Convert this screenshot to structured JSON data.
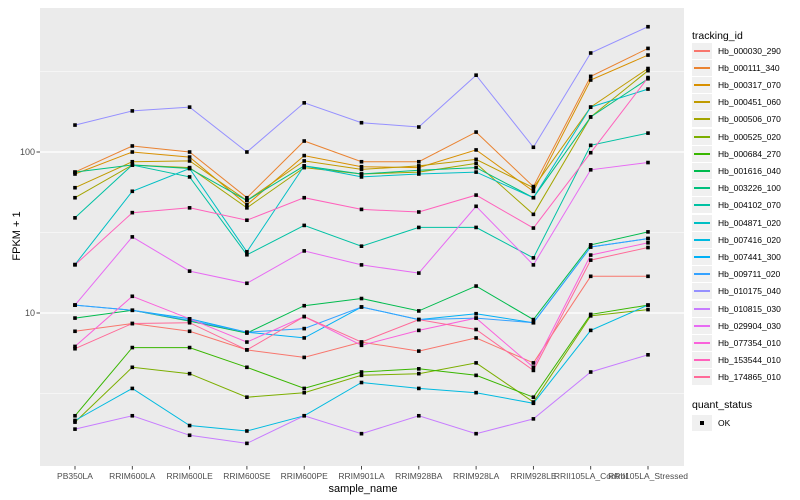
{
  "figure": {
    "bg": "#FFFFFF",
    "panel_bg": "#EBEBEB",
    "grid_color": "#FFFFFF",
    "axis_text_color": "#4D4D4D",
    "tick_mark_color": "#333333",
    "marker_color": "#000000"
  },
  "axes": {
    "x_title": "sample_name",
    "y_title": "FPKM + 1",
    "y_tick_labels": [
      "100",
      "10"
    ],
    "y_tick_values": [
      100,
      10
    ]
  },
  "legend": {
    "tracking_title": "tracking_id",
    "quant_title": "quant_status",
    "quant_items": [
      {
        "label": "OK",
        "marker": "filled-square"
      }
    ]
  },
  "chart_data": {
    "type": "line",
    "title": "",
    "xlabel": "sample_name",
    "ylabel": "FPKM + 1",
    "log_y": true,
    "ylim": [
      1.15,
      760
    ],
    "y_major_gridlines": [
      10,
      100
    ],
    "y_minor_gridlines": [
      3.162,
      31.62,
      316.2
    ],
    "grid": true,
    "legend_position": "right",
    "point_shape": "filled-square",
    "quant_status_all": "OK",
    "categories": [
      "PB350LA",
      "RRIM600LA",
      "RRIM600LE",
      "RRIM600SE",
      "RRIM600PE",
      "RRIM901LA",
      "RRIM928BA",
      "RRIM928LA",
      "RRIM928LE",
      "RRII105LA_Control",
      "RRII105LA_Stressed"
    ],
    "series": [
      {
        "name": "Hb_000030_290",
        "color": "#F8766D",
        "values": [
          7.7,
          8.6,
          7.7,
          5.9,
          5.3,
          6.6,
          5.8,
          7.0,
          4.9,
          16.9,
          16.9
        ]
      },
      {
        "name": "Hb_000111_340",
        "color": "#EA8331",
        "values": [
          75,
          109,
          100,
          52,
          117,
          87,
          87,
          133,
          61,
          295,
          440
        ]
      },
      {
        "name": "Hb_000317_070",
        "color": "#D89000",
        "values": [
          73,
          100,
          93,
          47,
          95,
          81,
          80,
          103,
          57,
          280,
          400
        ]
      },
      {
        "name": "Hb_000451_060",
        "color": "#C09B00",
        "values": [
          60,
          87,
          88,
          50,
          88,
          78,
          82,
          90,
          60,
          190,
          330
        ]
      },
      {
        "name": "Hb_000506_070",
        "color": "#A3A500",
        "values": [
          52,
          83,
          80,
          45,
          80,
          73,
          75,
          85,
          41,
          165,
          320
        ]
      },
      {
        "name": "Hb_000525_020",
        "color": "#7CAE00",
        "values": [
          2.1,
          4.6,
          4.2,
          3.0,
          3.2,
          4.1,
          4.2,
          4.9,
          2.8,
          9.6,
          10.5
        ]
      },
      {
        "name": "Hb_000684_270",
        "color": "#39B600",
        "values": [
          2.3,
          6.1,
          6.1,
          4.6,
          3.4,
          4.3,
          4.5,
          4.1,
          3.0,
          9.8,
          11.2
        ]
      },
      {
        "name": "Hb_001616_040",
        "color": "#00BB4E",
        "values": [
          9.3,
          10.4,
          8.9,
          7.5,
          11.1,
          12.3,
          10.3,
          14.7,
          9.1,
          26.5,
          31.9
        ]
      },
      {
        "name": "Hb_003226_100",
        "color": "#00BF7D",
        "values": [
          75,
          83,
          79,
          50,
          82,
          73,
          77,
          80,
          52,
          165,
          285
        ]
      },
      {
        "name": "Hb_004102_070",
        "color": "#00C1A3",
        "values": [
          39,
          83,
          70,
          23,
          35,
          26,
          34,
          34,
          22,
          110,
          131
        ]
      },
      {
        "name": "Hb_004871_020",
        "color": "#00BFC4",
        "values": [
          20,
          57,
          79,
          24,
          82,
          70,
          73,
          75,
          52,
          190,
          246
        ]
      },
      {
        "name": "Hb_007416_020",
        "color": "#00BAE0",
        "values": [
          2.15,
          3.4,
          2.0,
          1.85,
          2.3,
          3.7,
          3.4,
          3.2,
          2.75,
          7.8,
          11.2
        ]
      },
      {
        "name": "Hb_007441_300",
        "color": "#00B0F6",
        "values": [
          11.2,
          10.4,
          9.2,
          7.6,
          7.0,
          10.9,
          9.1,
          9.9,
          8.7,
          25.7,
          29
        ]
      },
      {
        "name": "Hb_009711_020",
        "color": "#35A2FF",
        "values": [
          11.2,
          10.4,
          9.0,
          7.6,
          8.0,
          10.9,
          9.1,
          9.3,
          8.7,
          25.7,
          29
        ]
      },
      {
        "name": "Hb_010175_040",
        "color": "#9590FF",
        "values": [
          147,
          180,
          190,
          100,
          202,
          152,
          143,
          300,
          107,
          412,
          600
        ]
      },
      {
        "name": "Hb_010815_030",
        "color": "#C77CFF",
        "values": [
          1.9,
          2.3,
          1.74,
          1.55,
          2.3,
          1.78,
          2.3,
          1.78,
          2.2,
          4.3,
          5.5
        ]
      },
      {
        "name": "Hb_029904_030",
        "color": "#E76BF3",
        "values": [
          11.2,
          29.7,
          18.2,
          15.3,
          24.3,
          19.9,
          17.7,
          46,
          19.9,
          77.5,
          86
        ]
      },
      {
        "name": "Hb_077354_010",
        "color": "#FA62DB",
        "values": [
          6.2,
          12.7,
          9.2,
          6.6,
          9.5,
          6.3,
          7.8,
          9.3,
          4.6,
          22.9,
          27.3
        ]
      },
      {
        "name": "Hb_153544_010",
        "color": "#FF62BC",
        "values": [
          19.9,
          42,
          45,
          37.7,
          52,
          44,
          42.4,
          54,
          33.7,
          99,
          290
        ]
      },
      {
        "name": "Hb_174865_010",
        "color": "#FF6A98",
        "values": [
          6.0,
          8.6,
          8.7,
          5.9,
          9.5,
          6.6,
          9.1,
          7.9,
          4.4,
          21.3,
          25.5
        ]
      }
    ]
  }
}
